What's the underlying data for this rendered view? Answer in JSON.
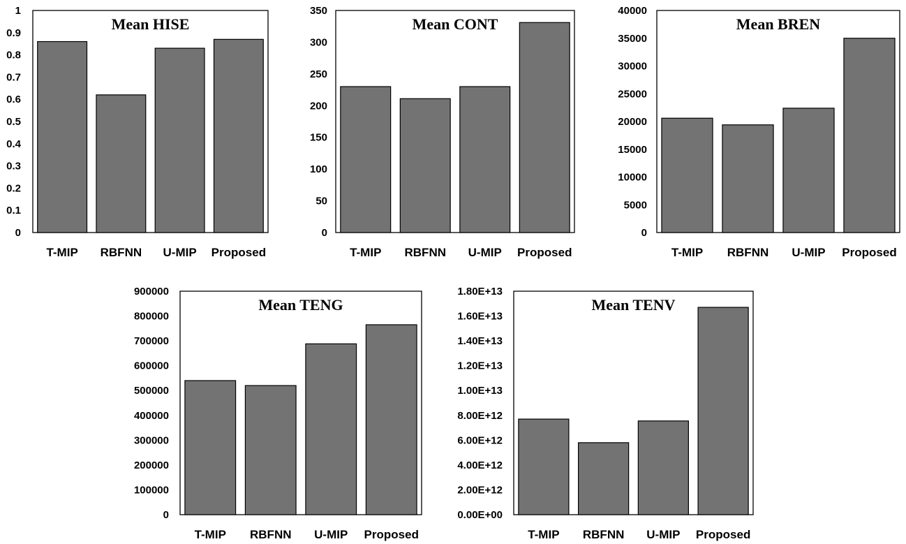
{
  "bar_color": "#737373",
  "chart_data": [
    {
      "type": "bar",
      "title": "Mean HISE",
      "categories": [
        "T-MIP",
        "RBFNN",
        "U-MIP",
        "Proposed"
      ],
      "values": [
        0.86,
        0.62,
        0.83,
        0.87
      ],
      "ylim": [
        0,
        1
      ],
      "yticks": [
        "0",
        "0.1",
        "0.2",
        "0.3",
        "0.4",
        "0.5",
        "0.6",
        "0.7",
        "0.8",
        "0.9",
        "1"
      ],
      "grid": false,
      "legend": false
    },
    {
      "type": "bar",
      "title": "Mean CONT",
      "categories": [
        "T-MIP",
        "RBFNN",
        "U-MIP",
        "Proposed"
      ],
      "values": [
        230,
        211,
        230,
        331
      ],
      "ylim": [
        0,
        350
      ],
      "yticks": [
        "0",
        "50",
        "100",
        "150",
        "200",
        "250",
        "300",
        "350"
      ],
      "grid": false,
      "legend": false
    },
    {
      "type": "bar",
      "title": "Mean BREN",
      "categories": [
        "T-MIP",
        "RBFNN",
        "U-MIP",
        "Proposed"
      ],
      "values": [
        20600,
        19400,
        22400,
        35000
      ],
      "ylim": [
        0,
        40000
      ],
      "yticks": [
        "0",
        "5000",
        "10000",
        "15000",
        "20000",
        "25000",
        "30000",
        "35000",
        "40000"
      ],
      "grid": false,
      "legend": false
    },
    {
      "type": "bar",
      "title": "Mean TENG",
      "categories": [
        "T-MIP",
        "RBFNN",
        "U-MIP",
        "Proposed"
      ],
      "values": [
        540000,
        520000,
        688000,
        765000
      ],
      "ylim": [
        0,
        900000
      ],
      "yticks": [
        "0",
        "100000",
        "200000",
        "300000",
        "400000",
        "500000",
        "600000",
        "700000",
        "800000",
        "900000"
      ],
      "grid": false,
      "legend": false
    },
    {
      "type": "bar",
      "title": "Mean TENV",
      "categories": [
        "T-MIP",
        "RBFNN",
        "U-MIP",
        "Proposed"
      ],
      "values": [
        7700000000000.0,
        5800000000000.0,
        7550000000000.0,
        16700000000000.0
      ],
      "ylim": [
        0,
        18000000000000.0
      ],
      "yticks": [
        "0.00E+00",
        "2.00E+12",
        "4.00E+12",
        "6.00E+12",
        "8.00E+12",
        "1.00E+13",
        "1.20E+13",
        "1.40E+13",
        "1.60E+13",
        "1.80E+13"
      ],
      "grid": false,
      "legend": false
    }
  ]
}
